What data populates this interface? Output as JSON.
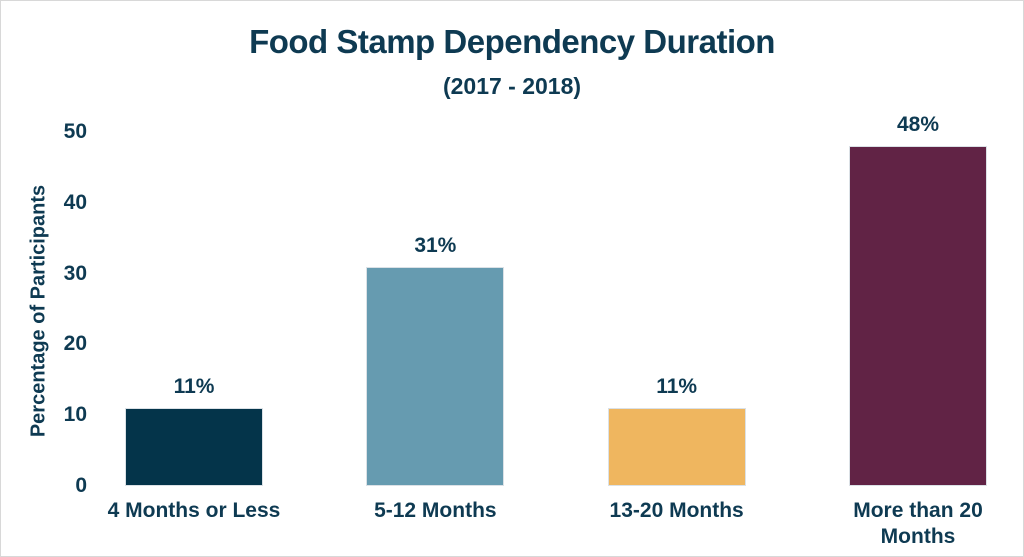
{
  "chart_data": {
    "type": "bar",
    "title": "Food Stamp Dependency Duration",
    "subtitle": "(2017 - 2018)",
    "ylabel": "Percentage of Participants",
    "xlabel": "",
    "categories": [
      "4 Months or Less",
      "5-12 Months",
      "13-20 Months",
      "More than 20 Months"
    ],
    "values": [
      11,
      31,
      11,
      48
    ],
    "value_labels": [
      "11%",
      "31%",
      "11%",
      "48%"
    ],
    "bar_colors": [
      "#04344a",
      "#669bb0",
      "#efb65f",
      "#612345"
    ],
    "text_color": "#0e3a52",
    "background_color": "#ffffff",
    "frame_border_color": "#d8d8d8",
    "ylim": [
      0,
      50
    ],
    "yticks": [
      0,
      10,
      20,
      30,
      40,
      50
    ],
    "grid": false,
    "legend": false
  }
}
